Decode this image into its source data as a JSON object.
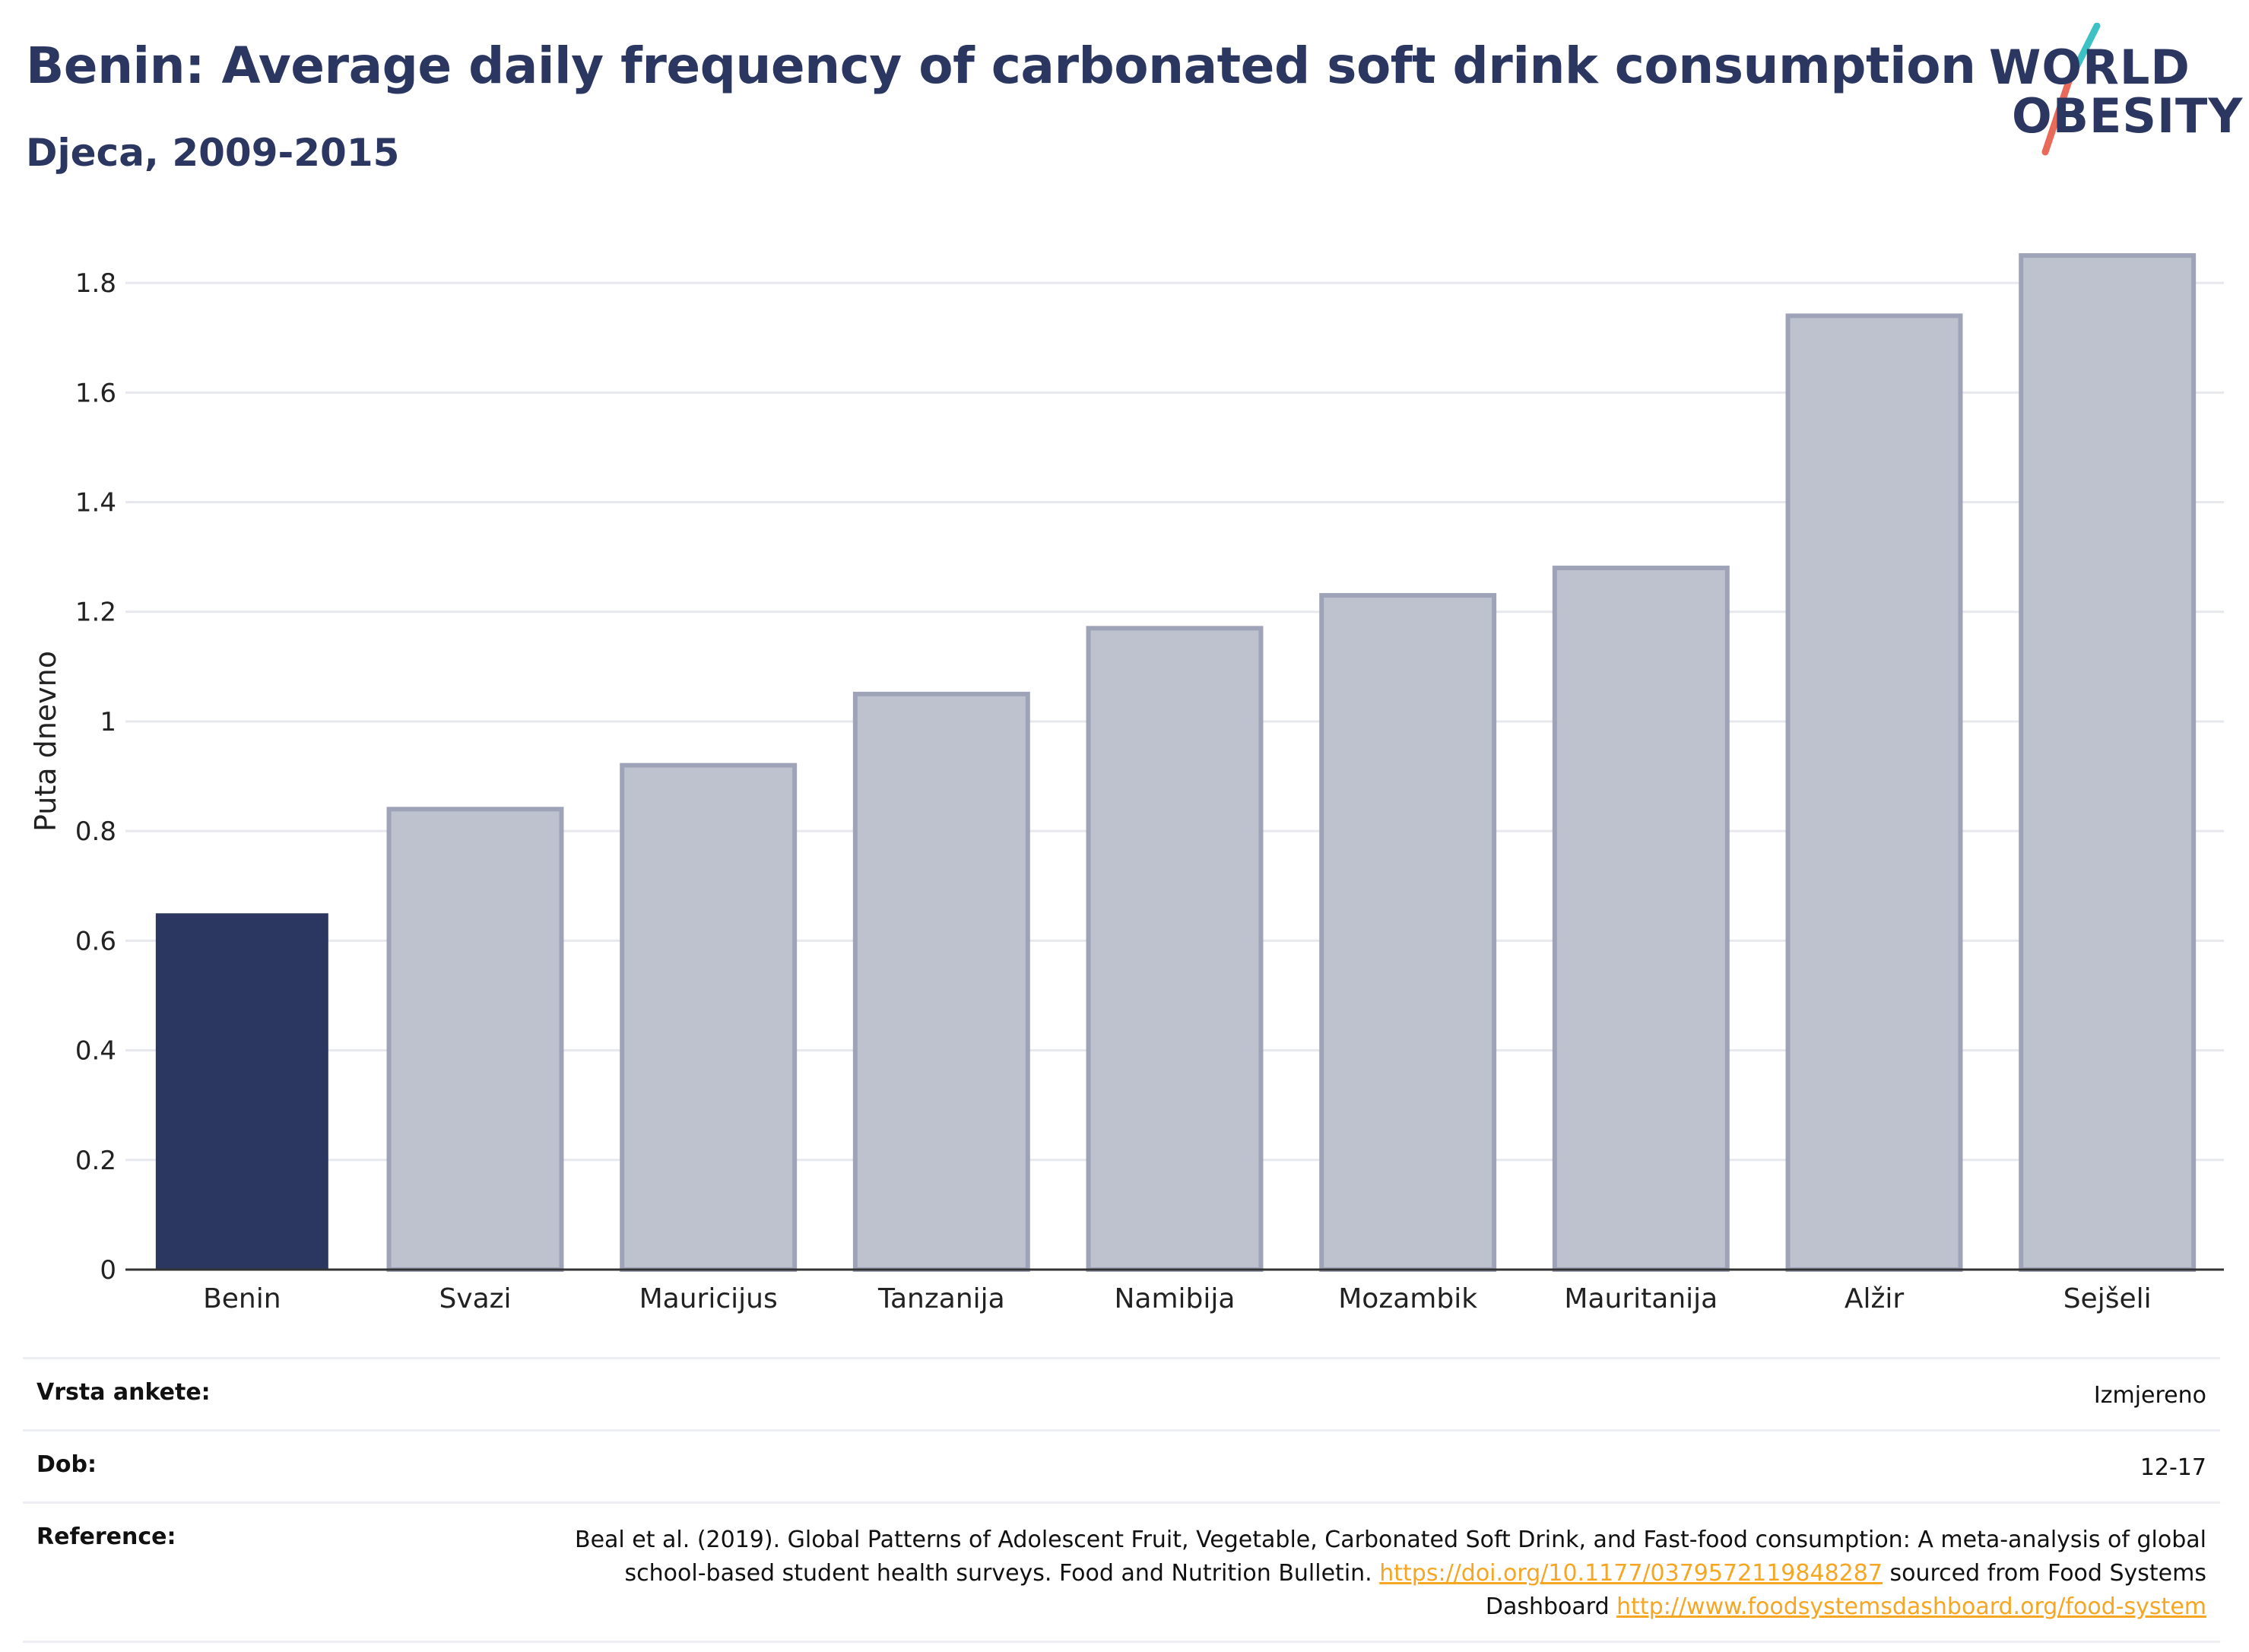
{
  "header": {
    "title": "Benin: Average daily frequency of carbonated soft drink consumption",
    "subtitle": "Djeca, 2009-2015"
  },
  "logo": {
    "line1": "WORLD",
    "line2": "OBESITY"
  },
  "chart_data": {
    "type": "bar",
    "ylabel": "Puta dnevno",
    "xlabel": "",
    "ylim": [
      0,
      1.9
    ],
    "yticks": [
      0,
      0.2,
      0.4,
      0.6,
      0.8,
      1,
      1.2,
      1.4,
      1.6,
      1.8
    ],
    "ytick_labels": [
      "0",
      "0.2",
      "0.4",
      "0.6",
      "0.8",
      "1",
      "1.2",
      "1.4",
      "1.6",
      "1.8"
    ],
    "grid": true,
    "categories": [
      "Benin",
      "Svazi",
      "Mauricijus",
      "Tanzanija",
      "Namibija",
      "Mozambik",
      "Mauritanija",
      "Alžir",
      "Sejšeli"
    ],
    "values": [
      0.65,
      0.84,
      0.92,
      1.05,
      1.17,
      1.23,
      1.28,
      1.74,
      1.85
    ],
    "highlight_index": 0,
    "colors": {
      "highlight": "#2b3761",
      "other_fill": "#bec2ce",
      "other_stroke": "#9ea3b8",
      "grid": "#e6e8ee",
      "axis": "#333333"
    }
  },
  "meta": {
    "survey_type": {
      "label": "Vrsta ankete:",
      "value": "Izmjereno"
    },
    "age": {
      "label": "Dob:",
      "value": "12-17"
    },
    "reference": {
      "label": "Reference:",
      "text1": "Beal et al. (2019). Global Patterns of Adolescent Fruit, Vegetable, Carbonated Soft Drink, and Fast-food consumption: A meta-analysis of global school-based student health surveys. Food and Nutrition Bulletin. ",
      "link1": "https://doi.org/10.1177/0379572119848287",
      "text2": " sourced from Food Systems Dashboard ",
      "link2": "http://www.foodsystemsdashboard.org/food-system"
    }
  }
}
